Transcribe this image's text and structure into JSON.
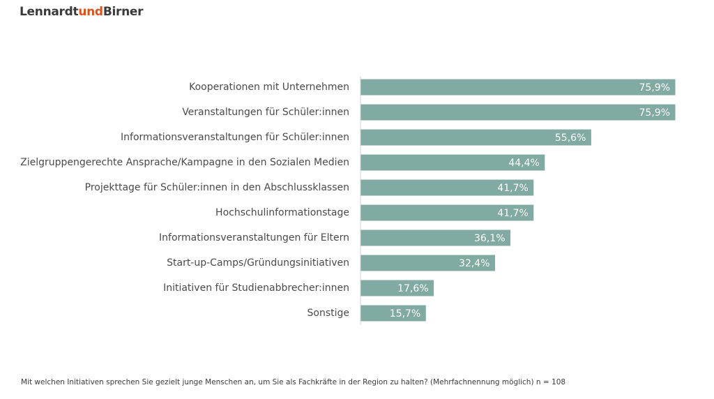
{
  "brand": {
    "name_part1": "Lennardt",
    "name_part2": "und",
    "name_part3": "Birner",
    "accent_color": "#d9531e"
  },
  "chart_data": {
    "type": "bar",
    "orientation": "horizontal",
    "categories": [
      "Kooperationen mit Unternehmen",
      "Veranstaltungen für Schüler:innen",
      "Informationsveranstaltungen für Schüler:innen",
      "Zielgruppengerechte Ansprache/Kampagne in den Sozialen Medien",
      "Projekttage für Schüler:innen in den Abschlussklassen",
      "Hochschulinformationstage",
      "Informationsveranstaltungen für Eltern",
      "Start-up-Camps/Gründungsinitiativen",
      "Initiativen für Studienabbrecher:innen",
      "Sonstige"
    ],
    "values": [
      75.9,
      75.9,
      55.6,
      44.4,
      41.7,
      41.7,
      36.1,
      32.4,
      17.6,
      15.7
    ],
    "value_labels": [
      "75,9%",
      "75,9%",
      "55,6%",
      "44,4%",
      "41,7%",
      "41,7%",
      "36,1%",
      "32,4%",
      "17,6%",
      "15,7%"
    ],
    "unit": "%",
    "xlim": [
      0,
      100
    ],
    "grid": false,
    "bar_color": "#80aaa2",
    "label_color": "#ffffff"
  },
  "footnote": "Mit welchen Initiativen sprechen Sie gezielt junge Menschen an, um Sie als Fachkräfte in der Region zu halten? (Mehrfachnennung möglich) n = 108"
}
